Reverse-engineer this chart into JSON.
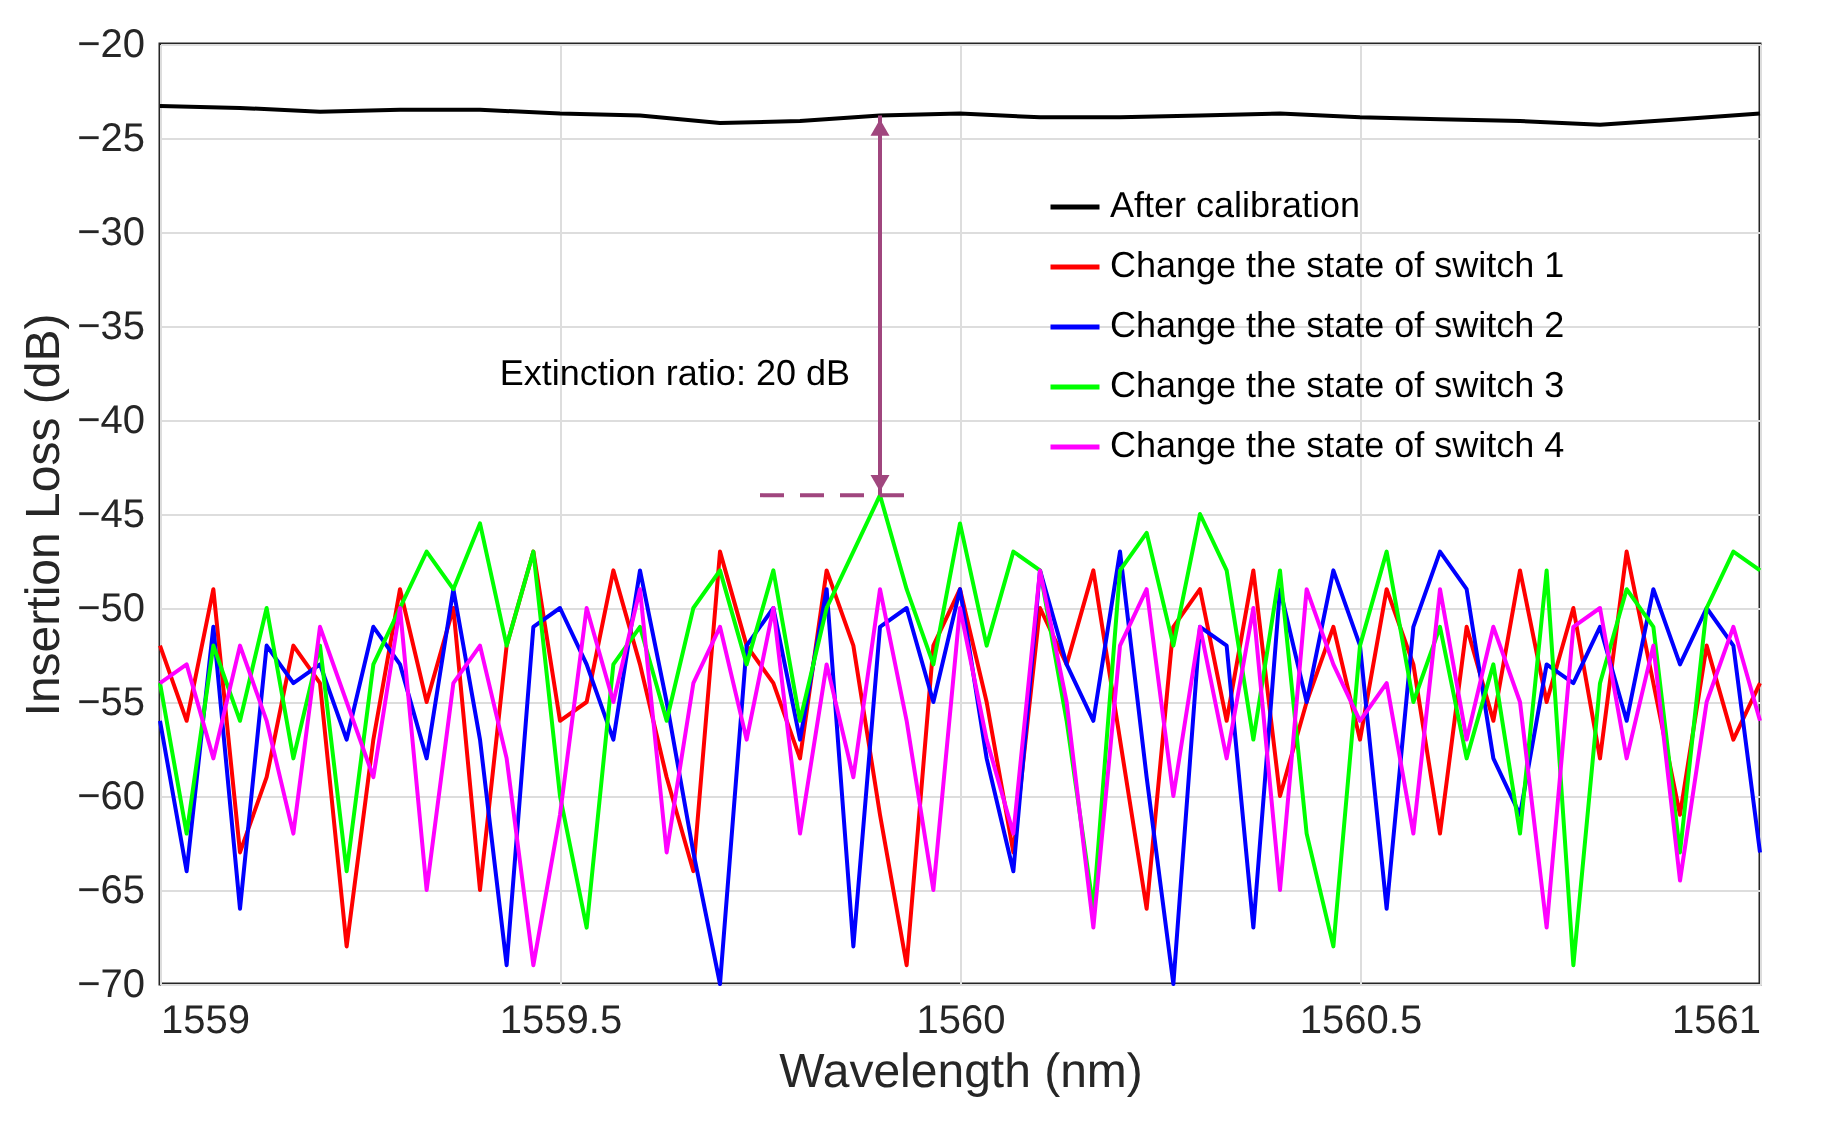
{
  "chart_data": {
    "type": "line",
    "xlabel": "Wavelength (nm)",
    "ylabel": "Insertion Loss (dB)",
    "x": [
      1559.0,
      1559.0333,
      1559.0667,
      1559.1,
      1559.1333,
      1559.1667,
      1559.2,
      1559.2333,
      1559.2667,
      1559.3,
      1559.3333,
      1559.3667,
      1559.4,
      1559.4333,
      1559.4667,
      1559.5,
      1559.5333,
      1559.5667,
      1559.6,
      1559.6333,
      1559.6667,
      1559.7,
      1559.7333,
      1559.7667,
      1559.8,
      1559.8333,
      1559.8667,
      1559.9,
      1559.9333,
      1559.9667,
      1560.0,
      1560.0333,
      1560.0667,
      1560.1,
      1560.1333,
      1560.1667,
      1560.2,
      1560.2333,
      1560.2667,
      1560.3,
      1560.3333,
      1560.3667,
      1560.4,
      1560.4333,
      1560.4667,
      1560.5,
      1560.5333,
      1560.5667,
      1560.6,
      1560.6333,
      1560.6667,
      1560.7,
      1560.7333,
      1560.7667,
      1560.8,
      1560.8333,
      1560.8667,
      1560.9,
      1560.9333,
      1560.9667,
      1561.0
    ],
    "series": [
      {
        "name": "After calibration",
        "color": "#000000",
        "x": [
          1559.0,
          1559.1,
          1559.2,
          1559.3,
          1559.4,
          1559.5,
          1559.6,
          1559.7,
          1559.8,
          1559.9,
          1560.0,
          1560.1,
          1560.2,
          1560.3,
          1560.4,
          1560.5,
          1560.6,
          1560.7,
          1560.8,
          1560.9,
          1561.0
        ],
        "values": [
          -23.3,
          -23.4,
          -23.6,
          -23.5,
          -23.5,
          -23.7,
          -23.8,
          -24.2,
          -24.1,
          -23.8,
          -23.7,
          -23.9,
          -23.9,
          -23.8,
          -23.7,
          -23.9,
          -24.0,
          -24.1,
          -24.3,
          -24.0,
          -23.7
        ]
      },
      {
        "name": "Change the state of switch 1",
        "color": "#ff0000",
        "values": [
          -52,
          -56,
          -49,
          -63,
          -59,
          -52,
          -54,
          -68,
          -57,
          -49,
          -55,
          -50,
          -65,
          -52,
          -47,
          -56,
          -55,
          -48,
          -53,
          -59,
          -64,
          -47,
          -52,
          -54,
          -58,
          -48,
          -52,
          -61,
          -69,
          -52,
          -49,
          -55,
          -63,
          -50,
          -53,
          -48,
          -57,
          -66,
          -51,
          -49,
          -56,
          -48,
          -60,
          -55,
          -51,
          -57,
          -49,
          -53,
          -62,
          -51,
          -56,
          -48,
          -55,
          -50,
          -58,
          -47,
          -54,
          -61,
          -52,
          -57,
          -54
        ]
      },
      {
        "name": "Change the state of switch 2",
        "color": "#0000ff",
        "values": [
          -56,
          -64,
          -51,
          -66,
          -52,
          -54,
          -53,
          -57,
          -51,
          -53,
          -58,
          -49,
          -57,
          -69,
          -51,
          -50,
          -53,
          -57,
          -48,
          -55,
          -63,
          -70,
          -52,
          -50,
          -57,
          -49,
          -68,
          -51,
          -50,
          -55,
          -49,
          -58,
          -64,
          -48,
          -53,
          -56,
          -47,
          -59,
          -70,
          -51,
          -52,
          -67,
          -49,
          -55,
          -48,
          -52,
          -66,
          -51,
          -47,
          -49,
          -58,
          -61,
          -53,
          -54,
          -51,
          -56,
          -49,
          -53,
          -50,
          -52,
          -63
        ]
      },
      {
        "name": "Change the state of switch 3",
        "color": "#00ff00",
        "values": [
          -54,
          -62,
          -52,
          -56,
          -50,
          -58,
          -52,
          -64,
          -53,
          -50,
          -47,
          -49,
          -45.5,
          -52,
          -47,
          -60,
          -67,
          -53,
          -51,
          -56,
          -50,
          -48,
          -53,
          -48,
          -56,
          -50,
          -47,
          -44,
          -49,
          -53,
          -45.5,
          -52,
          -47,
          -48,
          -56,
          -66,
          -48,
          -46,
          -52,
          -45,
          -48,
          -57,
          -48,
          -62,
          -68,
          -52,
          -47,
          -55,
          -51,
          -58,
          -53,
          -62,
          -48,
          -69,
          -54,
          -49,
          -51,
          -63,
          -50,
          -47,
          -48
        ]
      },
      {
        "name": "Change the state of switch 4",
        "color": "#ff00ff",
        "values": [
          -54,
          -53,
          -58,
          -52,
          -56,
          -62,
          -51,
          -55,
          -59,
          -50,
          -65,
          -54,
          -52,
          -58,
          -69,
          -61,
          -50,
          -55,
          -49,
          -63,
          -54,
          -51,
          -57,
          -50,
          -62,
          -53,
          -59,
          -49,
          -56,
          -65,
          -50,
          -57,
          -62,
          -48,
          -55,
          -67,
          -52,
          -49,
          -60,
          -51,
          -58,
          -50,
          -65,
          -49,
          -53,
          -56,
          -54,
          -62,
          -49,
          -57,
          -51,
          -55,
          -67,
          -51,
          -50,
          -58,
          -52,
          -64.5,
          -55,
          -51,
          -56
        ]
      }
    ],
    "xlim": [
      1559,
      1561
    ],
    "xticks": [
      1559,
      1559.5,
      1560,
      1560.5,
      1561
    ],
    "ylim": [
      -70,
      -20
    ],
    "yticks": [
      -70,
      -65,
      -60,
      -55,
      -50,
      -45,
      -40,
      -35,
      -30,
      -25,
      -20
    ],
    "grid": true,
    "legend": "top right",
    "ref_lines": [
      {
        "axis": "y",
        "value": -44,
        "color": "#a0467e",
        "line_style": "dashed"
      }
    ],
    "annotations": [
      {
        "text": "Extinction ratio: 20 dB",
        "x": 1559.9,
        "y": -44
      }
    ]
  }
}
